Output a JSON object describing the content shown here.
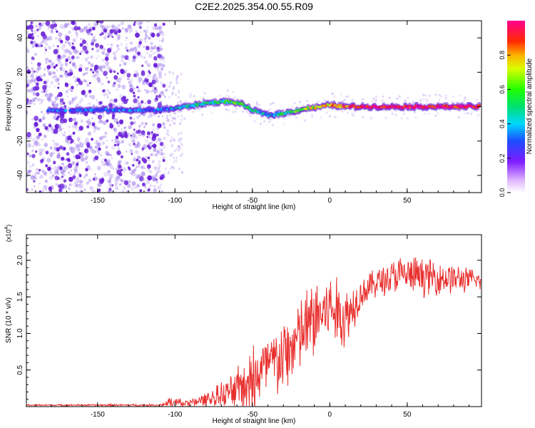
{
  "title": "C2E2.2025.354.00.55.R09",
  "colors": {
    "snr_line": "#e8302e",
    "dots_dim": "#8e63e8",
    "dots_bright": "#6a1fd9"
  },
  "chart_data": [
    {
      "type": "heatmap",
      "name": "spectrogram",
      "xlabel": "Height of straight line (km)",
      "ylabel": "Frequency (Hz)",
      "xlim": [
        -196,
        98
      ],
      "ylim": [
        -50,
        50
      ],
      "x_ticks": [
        -150,
        -100,
        -50,
        0,
        50
      ],
      "y_ticks": [
        -40,
        -20,
        0,
        20,
        40
      ],
      "grid": false,
      "noise_region_x": [
        -196,
        -107
      ],
      "ridge": [
        {
          "x": -180,
          "y": -2
        },
        {
          "x": -112,
          "y": -2
        },
        {
          "x": -100,
          "y": -1
        },
        {
          "x": -80,
          "y": 2
        },
        {
          "x": -68,
          "y": 3
        },
        {
          "x": -58,
          "y": 2
        },
        {
          "x": -50,
          "y": -2
        },
        {
          "x": -40,
          "y": -5
        },
        {
          "x": -30,
          "y": -4
        },
        {
          "x": -15,
          "y": -1
        },
        {
          "x": -5,
          "y": 0
        },
        {
          "x": 0,
          "y": 1
        },
        {
          "x": 10,
          "y": 0
        },
        {
          "x": 50,
          "y": 0
        },
        {
          "x": 95,
          "y": 0
        }
      ],
      "ridge_amplitude": [
        {
          "x": -180,
          "a": 0.25
        },
        {
          "x": -110,
          "a": 0.3
        },
        {
          "x": -95,
          "a": 0.4
        },
        {
          "x": -60,
          "a": 0.55
        },
        {
          "x": -40,
          "a": 0.4
        },
        {
          "x": -20,
          "a": 0.6
        },
        {
          "x": 0,
          "a": 0.8
        },
        {
          "x": 20,
          "a": 0.95
        },
        {
          "x": 95,
          "a": 0.95
        }
      ],
      "colorbar": {
        "label": "Normalized spectral amplitude",
        "range": [
          0,
          1
        ],
        "ticks": [
          "0.0",
          "0.2",
          "0.4",
          "0.6",
          "0.8"
        ]
      }
    },
    {
      "type": "line",
      "name": "snr",
      "xlabel": "Height of straight line (km)",
      "ylabel": "SNR (10 * v/v)",
      "y_multiplier": "(x10",
      "y_multiplier_exp": "4",
      "y_multiplier_close": ")",
      "xlim": [
        -196,
        98
      ],
      "ylim": [
        0,
        2.35
      ],
      "x_ticks": [
        -150,
        -100,
        -50,
        0,
        50
      ],
      "y_ticks": [
        "0.5",
        "1.0",
        "1.5",
        "2.0"
      ],
      "y_tick_values": [
        0.5,
        1.0,
        1.5,
        2.0
      ],
      "grid": false,
      "series": [
        {
          "envelope": [
            {
              "x": -196,
              "mean": 0.02,
              "amp": 0.01
            },
            {
              "x": -110,
              "mean": 0.02,
              "amp": 0.015
            },
            {
              "x": -103,
              "mean": 0.05,
              "amp": 0.08
            },
            {
              "x": -90,
              "mean": 0.05,
              "amp": 0.05
            },
            {
              "x": -75,
              "mean": 0.12,
              "amp": 0.12
            },
            {
              "x": -60,
              "mean": 0.22,
              "amp": 0.28
            },
            {
              "x": -50,
              "mean": 0.4,
              "amp": 0.45
            },
            {
              "x": -40,
              "mean": 0.55,
              "amp": 0.45
            },
            {
              "x": -30,
              "mean": 0.65,
              "amp": 0.5
            },
            {
              "x": -20,
              "mean": 0.95,
              "amp": 0.5
            },
            {
              "x": -10,
              "mean": 1.2,
              "amp": 0.55
            },
            {
              "x": 0,
              "mean": 1.35,
              "amp": 0.45
            },
            {
              "x": 10,
              "mean": 1.2,
              "amp": 0.45
            },
            {
              "x": 20,
              "mean": 1.55,
              "amp": 0.2
            },
            {
              "x": 30,
              "mean": 1.7,
              "amp": 0.2
            },
            {
              "x": 45,
              "mean": 1.8,
              "amp": 0.25
            },
            {
              "x": 60,
              "mean": 1.78,
              "amp": 0.25
            },
            {
              "x": 80,
              "mean": 1.75,
              "amp": 0.2
            },
            {
              "x": 98,
              "mean": 1.72,
              "amp": 0.12
            }
          ]
        }
      ]
    }
  ]
}
